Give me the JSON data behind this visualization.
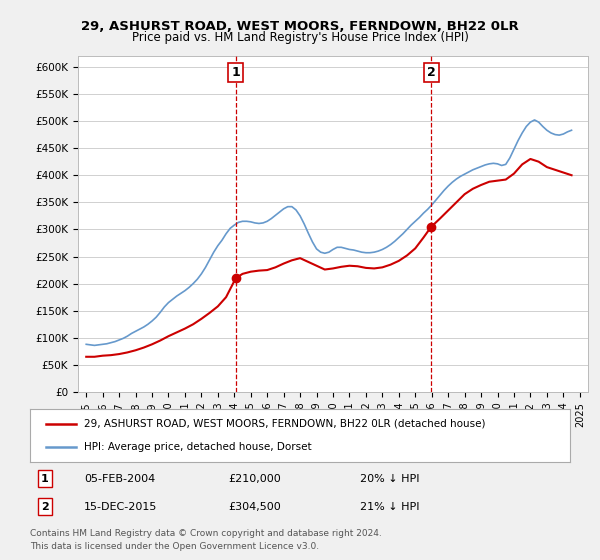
{
  "title": "29, ASHURST ROAD, WEST MOORS, FERNDOWN, BH22 0LR",
  "subtitle": "Price paid vs. HM Land Registry's House Price Index (HPI)",
  "ylabel_ticks": [
    "£0",
    "£50K",
    "£100K",
    "£150K",
    "£200K",
    "£250K",
    "£300K",
    "£350K",
    "£400K",
    "£450K",
    "£500K",
    "£550K",
    "£600K"
  ],
  "ytick_vals": [
    0,
    50000,
    100000,
    150000,
    200000,
    250000,
    300000,
    350000,
    400000,
    450000,
    500000,
    550000,
    600000
  ],
  "ylim": [
    0,
    620000
  ],
  "xlim_start": 1994.5,
  "xlim_end": 2025.5,
  "bg_color": "#f0f0f0",
  "plot_bg_color": "#ffffff",
  "grid_color": "#d0d0d0",
  "red_color": "#cc0000",
  "blue_color": "#6699cc",
  "marker1_date": 2004.09,
  "marker2_date": 2015.96,
  "marker1_price": 210000,
  "marker2_price": 304500,
  "sale1_label": "1",
  "sale2_label": "2",
  "legend_line1": "29, ASHURST ROAD, WEST MOORS, FERNDOWN, BH22 0LR (detached house)",
  "legend_line2": "HPI: Average price, detached house, Dorset",
  "table_row1": "1    05-FEB-2004    £210,000    20% ↓ HPI",
  "table_row2": "2    15-DEC-2015    £304,500    21% ↓ HPI",
  "footnote": "Contains HM Land Registry data © Crown copyright and database right 2024.\nThis data is licensed under the Open Government Licence v3.0.",
  "hpi_x": [
    1995.0,
    1995.25,
    1995.5,
    1995.75,
    1996.0,
    1996.25,
    1996.5,
    1996.75,
    1997.0,
    1997.25,
    1997.5,
    1997.75,
    1998.0,
    1998.25,
    1998.5,
    1998.75,
    1999.0,
    1999.25,
    1999.5,
    1999.75,
    2000.0,
    2000.25,
    2000.5,
    2000.75,
    2001.0,
    2001.25,
    2001.5,
    2001.75,
    2002.0,
    2002.25,
    2002.5,
    2002.75,
    2003.0,
    2003.25,
    2003.5,
    2003.75,
    2004.0,
    2004.25,
    2004.5,
    2004.75,
    2005.0,
    2005.25,
    2005.5,
    2005.75,
    2006.0,
    2006.25,
    2006.5,
    2006.75,
    2007.0,
    2007.25,
    2007.5,
    2007.75,
    2008.0,
    2008.25,
    2008.5,
    2008.75,
    2009.0,
    2009.25,
    2009.5,
    2009.75,
    2010.0,
    2010.25,
    2010.5,
    2010.75,
    2011.0,
    2011.25,
    2011.5,
    2011.75,
    2012.0,
    2012.25,
    2012.5,
    2012.75,
    2013.0,
    2013.25,
    2013.5,
    2013.75,
    2014.0,
    2014.25,
    2014.5,
    2014.75,
    2015.0,
    2015.25,
    2015.5,
    2015.75,
    2016.0,
    2016.25,
    2016.5,
    2016.75,
    2017.0,
    2017.25,
    2017.5,
    2017.75,
    2018.0,
    2018.25,
    2018.5,
    2018.75,
    2019.0,
    2019.25,
    2019.5,
    2019.75,
    2020.0,
    2020.25,
    2020.5,
    2020.75,
    2021.0,
    2021.25,
    2021.5,
    2021.75,
    2022.0,
    2022.25,
    2022.5,
    2022.75,
    2023.0,
    2023.25,
    2023.5,
    2023.75,
    2024.0,
    2024.25,
    2024.5
  ],
  "hpi_y": [
    88000,
    87000,
    86000,
    87000,
    88000,
    89000,
    91000,
    93000,
    96000,
    99000,
    103000,
    108000,
    112000,
    116000,
    120000,
    125000,
    131000,
    138000,
    147000,
    157000,
    165000,
    171000,
    177000,
    182000,
    187000,
    193000,
    200000,
    208000,
    218000,
    230000,
    244000,
    258000,
    270000,
    280000,
    292000,
    302000,
    308000,
    313000,
    315000,
    315000,
    314000,
    312000,
    311000,
    312000,
    315000,
    320000,
    326000,
    332000,
    338000,
    342000,
    342000,
    336000,
    325000,
    310000,
    293000,
    277000,
    264000,
    258000,
    256000,
    258000,
    263000,
    267000,
    267000,
    265000,
    263000,
    262000,
    260000,
    258000,
    257000,
    257000,
    258000,
    260000,
    263000,
    267000,
    272000,
    278000,
    285000,
    292000,
    300000,
    308000,
    315000,
    322000,
    330000,
    337000,
    345000,
    354000,
    363000,
    372000,
    380000,
    387000,
    393000,
    398000,
    402000,
    406000,
    410000,
    413000,
    416000,
    419000,
    421000,
    422000,
    421000,
    418000,
    420000,
    432000,
    448000,
    464000,
    478000,
    490000,
    498000,
    502000,
    498000,
    490000,
    483000,
    478000,
    475000,
    474000,
    476000,
    480000,
    483000
  ],
  "price_x": [
    1995.0,
    1995.5,
    1996.0,
    1996.5,
    1997.0,
    1997.5,
    1998.0,
    1998.5,
    1999.0,
    1999.5,
    2000.0,
    2000.5,
    2001.0,
    2001.5,
    2002.0,
    2002.5,
    2003.0,
    2003.5,
    2004.09,
    2004.5,
    2005.0,
    2005.5,
    2006.0,
    2006.5,
    2007.0,
    2007.5,
    2008.0,
    2008.5,
    2009.0,
    2009.5,
    2010.0,
    2010.5,
    2011.0,
    2011.5,
    2012.0,
    2012.5,
    2013.0,
    2013.5,
    2014.0,
    2014.5,
    2015.0,
    2015.5,
    2015.96,
    2016.5,
    2017.0,
    2017.5,
    2018.0,
    2018.5,
    2019.0,
    2019.5,
    2020.0,
    2020.5,
    2021.0,
    2021.5,
    2022.0,
    2022.5,
    2023.0,
    2023.5,
    2024.0,
    2024.5
  ],
  "price_y": [
    65000,
    65000,
    67000,
    68000,
    70000,
    73000,
    77000,
    82000,
    88000,
    95000,
    103000,
    110000,
    117000,
    125000,
    135000,
    146000,
    158000,
    175000,
    210000,
    218000,
    222000,
    224000,
    225000,
    230000,
    237000,
    243000,
    247000,
    240000,
    233000,
    226000,
    228000,
    231000,
    233000,
    232000,
    229000,
    228000,
    230000,
    235000,
    242000,
    252000,
    265000,
    285000,
    304500,
    320000,
    335000,
    350000,
    365000,
    375000,
    382000,
    388000,
    390000,
    392000,
    403000,
    420000,
    430000,
    425000,
    415000,
    410000,
    405000,
    400000
  ]
}
